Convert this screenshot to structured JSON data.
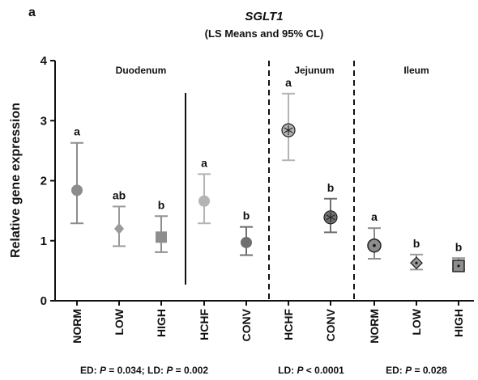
{
  "panel_label": "a",
  "chart_data": {
    "type": "scatter",
    "title": "SGLT1",
    "subtitle": "(LS Means and 95% CL)",
    "ylabel": "Relative gene expression",
    "xlabel": "",
    "ylim": [
      0,
      4
    ],
    "yticks": [
      "0",
      "1",
      "2",
      "3",
      "4"
    ],
    "grid": false,
    "sections": [
      "Duodenum",
      "Jejunum",
      "Ileum"
    ],
    "points": [
      {
        "category": "NORM",
        "section": "Duodenum",
        "mean": 1.84,
        "lower": 1.29,
        "upper": 2.63,
        "letter": "a",
        "marker": "circle",
        "color": "#8c8c8c"
      },
      {
        "category": "LOW",
        "section": "Duodenum",
        "mean": 1.2,
        "lower": 0.91,
        "upper": 1.57,
        "letter": "ab",
        "marker": "diamond",
        "color": "#9a9a9a"
      },
      {
        "category": "HIGH",
        "section": "Duodenum",
        "mean": 1.06,
        "lower": 0.81,
        "upper": 1.41,
        "letter": "b",
        "marker": "square",
        "color": "#8e8e8e"
      },
      {
        "category": "HCHF",
        "section": "Duodenum",
        "mean": 1.66,
        "lower": 1.29,
        "upper": 2.11,
        "letter": "a",
        "marker": "circle",
        "color": "#b4b4b4"
      },
      {
        "category": "CONV",
        "section": "Duodenum",
        "mean": 0.97,
        "lower": 0.76,
        "upper": 1.23,
        "letter": "b",
        "marker": "circle",
        "color": "#6f6f6f"
      },
      {
        "category": "HCHF",
        "section": "Jejunum",
        "mean": 2.84,
        "lower": 2.34,
        "upper": 3.45,
        "letter": "a",
        "marker": "asterisk-circle",
        "color": "#b4b4b4"
      },
      {
        "category": "CONV",
        "section": "Jejunum",
        "mean": 1.39,
        "lower": 1.14,
        "upper": 1.7,
        "letter": "b",
        "marker": "asterisk-circle",
        "color": "#6f6f6f"
      },
      {
        "category": "NORM",
        "section": "Ileum",
        "mean": 0.92,
        "lower": 0.7,
        "upper": 1.21,
        "letter": "a",
        "marker": "dot-circle",
        "color": "#8c8c8c"
      },
      {
        "category": "LOW",
        "section": "Ileum",
        "mean": 0.63,
        "lower": 0.52,
        "upper": 0.77,
        "letter": "b",
        "marker": "dot-diamond",
        "color": "#9a9a9a"
      },
      {
        "category": "HIGH",
        "section": "Ileum",
        "mean": 0.58,
        "lower": 0.52,
        "upper": 0.71,
        "letter": "b",
        "marker": "dot-square",
        "color": "#8e8e8e"
      }
    ],
    "footnotes": [
      {
        "text": [
          {
            "t": "ED: ",
            "i": false
          },
          {
            "t": "P",
            "i": true
          },
          {
            "t": " = 0.034; LD: ",
            "i": false
          },
          {
            "t": "P",
            "i": true
          },
          {
            "t": " = 0.002",
            "i": false
          }
        ]
      },
      {
        "text": [
          {
            "t": "LD: ",
            "i": false
          },
          {
            "t": "P",
            "i": true
          },
          {
            "t": " < 0.0001",
            "i": false
          }
        ]
      },
      {
        "text": [
          {
            "t": "ED: ",
            "i": false
          },
          {
            "t": "P",
            "i": true
          },
          {
            "t": " = 0.028",
            "i": false
          }
        ]
      }
    ]
  }
}
